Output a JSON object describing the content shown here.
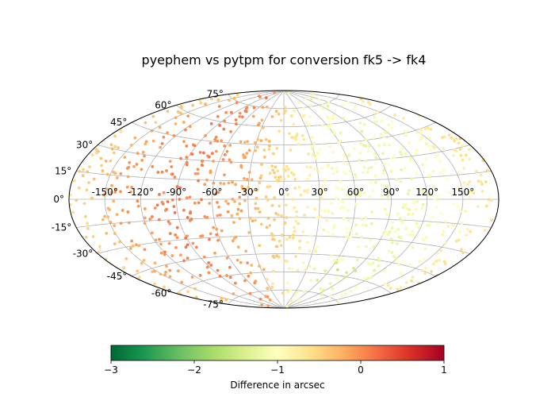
{
  "chart_data": {
    "type": "scatter",
    "projection": "aitoff",
    "title": "pyephem vs pytpm for conversion fk5 -> fk4",
    "xlabel": "",
    "ylabel": "",
    "lon_tick_labels": [
      "-150°",
      "-120°",
      "-90°",
      "-60°",
      "-30°",
      "0°",
      "30°",
      "60°",
      "90°",
      "120°",
      "150°"
    ],
    "lat_tick_labels": [
      "75°",
      "60°",
      "45°",
      "30°",
      "15°",
      "0°",
      "-15°",
      "-30°",
      "-45°",
      "-60°",
      "-75°"
    ],
    "lon_range_deg": [
      -180,
      180
    ],
    "lat_range_deg": [
      -90,
      90
    ],
    "grid": true,
    "colorbar": {
      "label": "Difference in arcsec",
      "cmap": "RdYlGn_r",
      "range": [
        -3,
        1
      ],
      "ticks": [
        -3,
        -2,
        -1,
        0,
        1
      ],
      "tick_labels": [
        "−3",
        "−2",
        "−1",
        "0",
        "1"
      ],
      "colors": [
        "#006837",
        "#1a9850",
        "#66bd63",
        "#a6d96a",
        "#d9ef8b",
        "#ffffbf",
        "#fee08b",
        "#fdae61",
        "#f46d43",
        "#d73027",
        "#a50026"
      ]
    },
    "points_description": "about 1000 random sky positions; color value trend from about -0.2 near lon -150 to about -1.2 near lon 90, with low points near lat -60",
    "value_model": {
      "base": -0.55,
      "amplitude": 0.6,
      "peak_lon_deg": 90,
      "southern_low_lat_deg": -60,
      "southern_low_extra": -0.4,
      "point_count": 1000
    }
  }
}
